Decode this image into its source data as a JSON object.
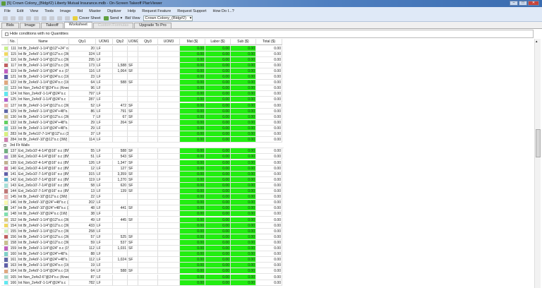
{
  "window": {
    "title": "[5] Crown Colony_(Bldg#2) Liberty Mutual Insurance.mdb - On-Screen Takeoff PlanViewer",
    "buttons": [
      "–",
      "□",
      "✕"
    ]
  },
  "menu": [
    "File",
    "Edit",
    "View",
    "Tools",
    "Image",
    "Bid",
    "Master",
    "Digitizer",
    "Help",
    "Request Feature",
    "Request Support",
    "How Do I...?"
  ],
  "toolbar": {
    "cover_sheet": "Cover Sheet",
    "send": "Send",
    "bid_view_label": "Bid View",
    "bid_view_value": "Crown Colony_(Bldg#2)"
  },
  "tabs": [
    {
      "label": "Bids",
      "state": "normal"
    },
    {
      "label": "Image",
      "state": "normal"
    },
    {
      "label": "Takeoff",
      "state": "normal"
    },
    {
      "label": "Worksheet",
      "state": "active"
    },
    {
      "label": "Custom Formulas",
      "state": "disabled"
    },
    {
      "label": "Upgrade To Pro",
      "state": "normal"
    }
  ],
  "hide_conditions_label": "Hide conditions with no Quantities",
  "hide_conditions_checked": false,
  "columns": [
    "No.",
    "Name",
    "Qty1",
    "UOM1",
    "Qty2",
    "UOM2",
    "Qty3",
    "UOM3",
    "Mat ($)",
    "Labor ($)",
    "Sub ($)",
    "Total ($)"
  ],
  "money_highlight_color": "#22ee11",
  "groups": [
    {
      "label": "",
      "rows": [
        {
          "color": "#c8f08c",
          "no": "111",
          "name": "Int Br_2x4x9'-1-1/4\"@12\"+24\" o.c (4...",
          "qty1": "20",
          "uom1": "LF",
          "qty2": "",
          "uom2": ""
        },
        {
          "color": "#f0d860",
          "no": "115",
          "name": "Int Br_2x4x9'-1-1/4\"@12\"o.c (3W)",
          "qty1": "324",
          "uom1": "LF",
          "qty2": "",
          "uom2": ""
        },
        {
          "color": "#c8f0c8",
          "no": "116",
          "name": "Int Br_2x4x9'-1-1/4\"@12\"o.c (3W) (...",
          "qty1": "295",
          "uom1": "LF",
          "qty2": "",
          "uom2": ""
        },
        {
          "color": "#c06060",
          "no": "117",
          "name": "Int Br_2x4x9'-1-1/4\"@12\"o.c (3WS...",
          "qty1": "173",
          "uom1": "LF",
          "qty2": "1,588",
          "uom2": "SF"
        },
        {
          "color": "#c060c0",
          "no": "119",
          "name": "Int Br_2x4x9'-1-1/4\"@24\" o.c (1WS...",
          "qty1": "116",
          "uom1": "LF",
          "qty2": "1,064",
          "uom2": "SF"
        },
        {
          "color": "#6060a8",
          "no": "121",
          "name": "Int Br_2x4x9'-1-1/4\"@24\"o.c (1W)",
          "qty1": "23",
          "uom1": "LF",
          "qty2": "",
          "uom2": ""
        },
        {
          "color": "#e0a880",
          "no": "122",
          "name": "Int Br_2x4x9'-1-1/4\"@24\"o.c (1WS...",
          "qty1": "64",
          "uom1": "LF",
          "qty2": "588",
          "uom2": "SF"
        },
        {
          "color": "#a8d8c8",
          "no": "123",
          "name": "Int Non_2x4x2-6\"@24\"o.c (Knee W...",
          "qty1": "96",
          "uom1": "LF",
          "qty2": "",
          "uom2": ""
        },
        {
          "color": "#60e8f0",
          "no": "124",
          "name": "Int Non_2x4x9'-1-1/4\"@24\"o.c",
          "qty1": "797",
          "uom1": "LF",
          "qty2": "",
          "uom2": ""
        },
        {
          "color": "#b060d0",
          "no": "125",
          "name": "Int Non_2x4x9'-1-1/4\"@24\"o.c",
          "qty1": "287",
          "uom1": "LF",
          "qty2": "",
          "uom2": ""
        },
        {
          "color": "#e8b0b0",
          "no": "127",
          "name": "Int Br_2x4x9'-1-1/4\"@12\"o.c (3WS...",
          "qty1": "52",
          "uom1": "LF",
          "qty2": "472",
          "uom2": "SF"
        },
        {
          "color": "#6068a8",
          "no": "129",
          "name": "Int Br_2x4x9'-1-1/4\"@24\"+48\"o.c (2...",
          "qty1": "86",
          "uom1": "LF",
          "qty2": "791",
          "uom2": "SF"
        },
        {
          "color": "#c8c090",
          "no": "130",
          "name": "Int Br_2x4x9'-1-1/4\"@12\"o.c (3WS...",
          "qty1": "7",
          "uom1": "LF",
          "qty2": "67",
          "uom2": "SF"
        },
        {
          "color": "#60d060",
          "no": "132",
          "name": "Int Br_2x4x9'-1-1/4\"@24\"+48\"o.c (2...",
          "qty1": "29",
          "uom1": "LF",
          "qty2": "264",
          "uom2": "SF"
        },
        {
          "color": "#80d0c8",
          "no": "133",
          "name": "Int Br_2x4x9'-1-1/4\"@24\"+48\"o.c (2...",
          "qty1": "29",
          "uom1": "LF",
          "qty2": "",
          "uom2": ""
        },
        {
          "color": "#d8f080",
          "no": "283",
          "name": "Int Br_2x4x10'-7-1/4\"@12\"o.c (3W) (...",
          "qty1": "37",
          "uom1": "LF",
          "qty2": "",
          "uom2": ""
        },
        {
          "color": "#d080b0",
          "no": "284",
          "name": "Int Br_2x4x9'-10\"@12\"o.c (3W) (Dmi)",
          "qty1": "114",
          "uom1": "LF",
          "qty2": "",
          "uom2": ""
        }
      ]
    },
    {
      "label": "3rd Flr Walls",
      "rows": [
        {
          "color": "#70b080",
          "no": "137",
          "name": "Ext_2x6x10'-4-1/4\"@16\" o.c (8W)",
          "qty1": "55",
          "uom1": "LF",
          "qty2": "588",
          "uom2": "SF"
        },
        {
          "color": "#b090d0",
          "no": "138",
          "name": "Ext_2x6x10'-4-1/4\"@16\" o.c (8WS...",
          "qty1": "51",
          "uom1": "LF",
          "qty2": "543",
          "uom2": "SF"
        },
        {
          "color": "#c0b090",
          "no": "139",
          "name": "Ext_2x6x10'-4-1/4\"@16\" o.c (8WS...",
          "qty1": "126",
          "uom1": "LF",
          "qty2": "1,347",
          "uom2": "SF"
        },
        {
          "color": "#d080b0",
          "no": "140",
          "name": "Ext_2x6x10'-4-1/4\"@16\" o.c (8WS...",
          "qty1": "12",
          "uom1": "LF",
          "qty2": "127",
          "uom2": "SF"
        },
        {
          "color": "#6060a8",
          "no": "141",
          "name": "Ext_2x6x10'-7-1/4\"@16\" o.c (8W)",
          "qty1": "315",
          "uom1": "LF",
          "qty2": "3,359",
          "uom2": "SF"
        },
        {
          "color": "#60b0c8",
          "no": "142",
          "name": "Ext_2x6x10'-7-1/4\"@16\" o.c (8WS...",
          "qty1": "119",
          "uom1": "LF",
          "qty2": "1,270",
          "uom2": "SF"
        },
        {
          "color": "#a8e0d8",
          "no": "143",
          "name": "Ext_2x6x10'-7-1/4\"@16\" o.c (8WS...",
          "qty1": "58",
          "uom1": "LF",
          "qty2": "620",
          "uom2": "SF"
        },
        {
          "color": "#c07878",
          "no": "144",
          "name": "Ext_2x6x10'-7-1/4\"@16\" o.c (8WS...",
          "qty1": "13",
          "uom1": "LF",
          "qty2": "139",
          "uom2": "SF"
        },
        {
          "color": "#e8b8b8",
          "no": "145",
          "name": "Int Br_2x4x9'-10\"@12\"o.c (3W) (Cel)",
          "qty1": "22",
          "uom1": "LF",
          "qty2": "",
          "uom2": ""
        },
        {
          "color": "#f8f8b0",
          "no": "146",
          "name": "Int Br_2x4x9'-10\"@24\"+48\"o.c (2W...",
          "qty1": "202",
          "uom1": "LF",
          "qty2": "",
          "uom2": ""
        },
        {
          "color": "#60a060",
          "no": "147",
          "name": "Int Br_2x4x9'-10\"@24\"+48\"o.c (2W...",
          "qty1": "48",
          "uom1": "LF",
          "qty2": "441",
          "uom2": "SF"
        },
        {
          "color": "#80e0b0",
          "no": "148",
          "name": "Int Br_2x4x9'-10\"@24\"o.c (1W) (Cel)",
          "qty1": "38",
          "uom1": "LF",
          "qty2": "",
          "uom2": ""
        },
        {
          "color": "#d8c880",
          "no": "152",
          "name": "Int Br_2x4x9'-1-1/4\"@12\"o.c (3WS...",
          "qty1": "49",
          "uom1": "LF",
          "qty2": "445",
          "uom2": "SF"
        },
        {
          "color": "#f0d860",
          "no": "154",
          "name": "Int Br_2x4x9'-1-1/4\"@12\"o.c (3W)",
          "qty1": "433",
          "uom1": "LF",
          "qty2": "",
          "uom2": ""
        },
        {
          "color": "#c8f0c8",
          "no": "155",
          "name": "Int Br_2x4x9'-1-1/4\"@12\"o.c (3W) (...",
          "qty1": "258",
          "uom1": "LF",
          "qty2": "",
          "uom2": ""
        },
        {
          "color": "#c06060",
          "no": "156",
          "name": "Int Br_2x4x9'-1-1/4\"@12\"o.c (3WS...",
          "qty1": "57",
          "uom1": "LF",
          "qty2": "525",
          "uom2": "SF"
        },
        {
          "color": "#c8c090",
          "no": "158",
          "name": "Int Br_2x4x9'-1-1/4\"@12\"o.c (3WS...",
          "qty1": "59",
          "uom1": "LF",
          "qty2": "537",
          "uom2": "SF"
        },
        {
          "color": "#c060c0",
          "no": "159",
          "name": "Int Br_2x4x9'-1-1/4\"@24\" o.c (1WS...",
          "qty1": "112",
          "uom1": "LF",
          "qty2": "1,031",
          "uom2": "SF"
        },
        {
          "color": "#80d0c8",
          "no": "160",
          "name": "Int Br_2x4x9'-1-1/4\"@24\"+48\"o.c (2...",
          "qty1": "88",
          "uom1": "LF",
          "qty2": "",
          "uom2": ""
        },
        {
          "color": "#6068a8",
          "no": "161",
          "name": "Int Br_2x4x9'-1-1/4\"@24\"+48\"o.c (2...",
          "qty1": "112",
          "uom1": "LF",
          "qty2": "1,024",
          "uom2": "SF"
        },
        {
          "color": "#6060a8",
          "no": "163",
          "name": "Int Br_2x4x9'-1-1/4\"@24\"o.c (1W)",
          "qty1": "19",
          "uom1": "LF",
          "qty2": "",
          "uom2": ""
        },
        {
          "color": "#e0a880",
          "no": "164",
          "name": "Int Br_2x4x9'-1-1/4\"@24\"o.c (1WS...",
          "qty1": "64",
          "uom1": "LF",
          "qty2": "588",
          "uom2": "SF"
        },
        {
          "color": "#a8d8c8",
          "no": "165",
          "name": "Int Non_2x4x2-6\"@24\"o.c (Knee W...",
          "qty1": "87",
          "uom1": "LF",
          "qty2": "",
          "uom2": ""
        },
        {
          "color": "#60e8f0",
          "no": "166",
          "name": "Int Non_2x4x9'-1-1/4\"@24\"o.c",
          "qty1": "782",
          "uom1": "LF",
          "qty2": "",
          "uom2": ""
        }
      ]
    }
  ],
  "money_value": "0.00"
}
